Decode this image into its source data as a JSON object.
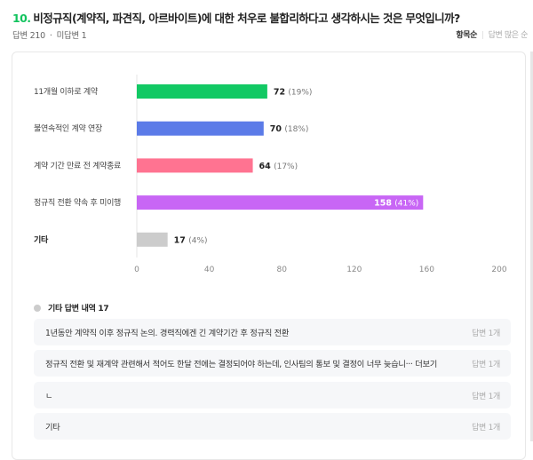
{
  "question": {
    "number": "10.",
    "text": "비정규직(계약직, 파견직, 아르바이트)에 대한 처우로 불합리하다고 생각하시는 것은 무엇입니까?"
  },
  "meta": {
    "answered": "답변 210",
    "unanswered": "미답변 1",
    "separator": "·"
  },
  "sort": {
    "active": "항목순",
    "inactive": "답변 많은 순"
  },
  "chart_data": {
    "type": "bar",
    "orientation": "horizontal",
    "categories": [
      "11개월 이하로 계약",
      "불연속적인 계약 연장",
      "계약 기간 만료 전 계약종료",
      "정규직 전환 약속 후 미이행",
      "기타"
    ],
    "values": [
      72,
      70,
      64,
      158,
      17
    ],
    "percent_labels": [
      "(19%)",
      "(18%)",
      "(17%)",
      "(41%)",
      "(4%)"
    ],
    "colors": [
      "#12c964",
      "#5b7be8",
      "#ff7391",
      "#c866f5",
      "#cccccc"
    ],
    "xlim": [
      0,
      200
    ],
    "xticks": [
      "0",
      "40",
      "80",
      "120",
      "160",
      "200"
    ],
    "grid": false
  },
  "etc": {
    "heading": "기타 답변 내역 17",
    "items": [
      {
        "text": "1년동안 계약직 이후 정규직 논의. 경력직에겐 긴 계약기간 후 정규직 전환",
        "count": "답변 1개"
      },
      {
        "text": "정규직 전환 및 재계약 관련해서 적어도 한달 전에는 결정되어야 하는데, 인사팀의 통보 및 결정이 너무 늦습니··· 더보기",
        "count": "답변 1개"
      },
      {
        "text": "ㄴ",
        "count": "답변 1개"
      },
      {
        "text": "기타",
        "count": "답변 1개"
      }
    ]
  }
}
